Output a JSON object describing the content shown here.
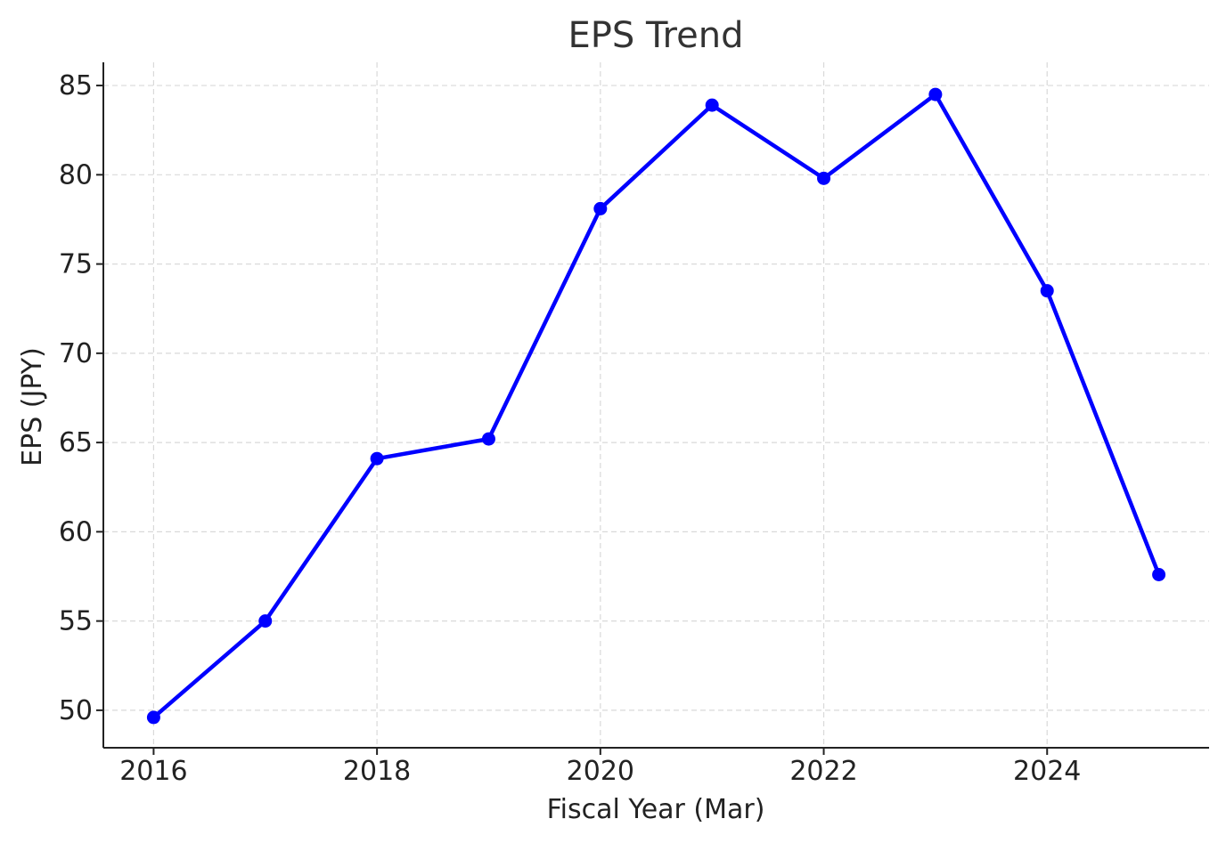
{
  "chart_data": {
    "type": "line",
    "title": "EPS Trend",
    "xlabel": "Fiscal Year (Mar)",
    "ylabel": "EPS (JPY)",
    "x": [
      2016,
      2017,
      2018,
      2019,
      2020,
      2021,
      2022,
      2023,
      2024,
      2025
    ],
    "series": [
      {
        "values": [
          49.6,
          55.0,
          64.1,
          65.2,
          78.1,
          83.9,
          79.8,
          84.5,
          73.5,
          57.6
        ],
        "color": "#0000ff",
        "marker": "circle"
      }
    ],
    "xticks": [
      "2016",
      "2018",
      "2020",
      "2022",
      "2024"
    ],
    "yticks": [
      "50",
      "55",
      "60",
      "65",
      "70",
      "75",
      "80",
      "85"
    ],
    "xlim": [
      2015.55,
      2025.45
    ],
    "ylim": [
      47.9,
      86.3
    ],
    "grid": true
  }
}
